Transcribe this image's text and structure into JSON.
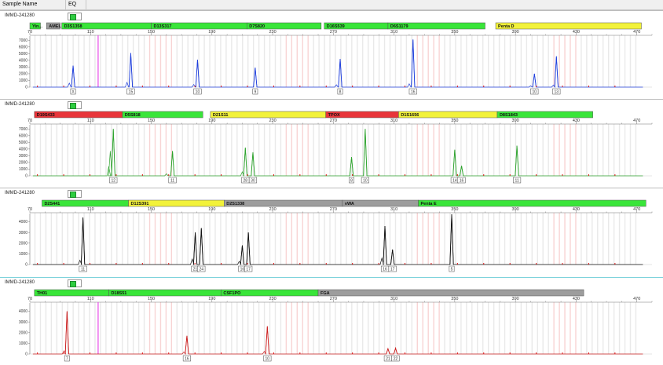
{
  "header": {
    "sample_name_label": "Sample Name",
    "eq_label": "EQ"
  },
  "colors": {
    "green": "#39e539",
    "yellow": "#f2f23a",
    "red": "#e8353a",
    "gray": "#9d9d9d",
    "blue": "#1f3fdc",
    "dkgreen": "#2ea32e",
    "black": "#111111",
    "red_trace": "#cc2020",
    "pink_line": "#e63ae6"
  },
  "panels": [
    {
      "sample": "IMMD-241280",
      "color": "#1f3fdc",
      "x_range": [
        70,
        480
      ],
      "x_ticks": [
        70,
        110,
        150,
        190,
        230,
        270,
        310,
        350,
        390,
        430,
        470
      ],
      "y_max": 7500,
      "y_ticks": [
        0,
        1000,
        2000,
        3000,
        4000,
        5000,
        6000,
        7000
      ],
      "loci": [
        {
          "name": "Yin...",
          "start": 70,
          "end": 77,
          "color": "green"
        },
        {
          "name": "AMEL",
          "start": 81,
          "end": 90,
          "color": "gray"
        },
        {
          "name": "D3S1358",
          "start": 91,
          "end": 150,
          "color": "green"
        },
        {
          "name": "D13S317",
          "start": 150,
          "end": 213,
          "color": "green"
        },
        {
          "name": "D7S820",
          "start": 213,
          "end": 262,
          "color": "green"
        },
        {
          "name": "D16S539",
          "start": 264,
          "end": 306,
          "color": "green"
        },
        {
          "name": "D6S1179",
          "start": 306,
          "end": 370,
          "color": "green"
        },
        {
          "name": "Penta D",
          "start": 377,
          "end": 473,
          "color": "yellow"
        }
      ],
      "pink_line": 115,
      "peaks": [
        {
          "x": 98.5,
          "h": 3200
        },
        {
          "x": 136.5,
          "h": 5100
        },
        {
          "x": 180.5,
          "h": 4100
        },
        {
          "x": 218.5,
          "h": 2900
        },
        {
          "x": 274.5,
          "h": 4200
        },
        {
          "x": 322.5,
          "h": 7100
        },
        {
          "x": 402.5,
          "h": 2000
        },
        {
          "x": 417,
          "h": 4600
        }
      ],
      "small_peaks": [
        {
          "x": 96,
          "h": 600
        },
        {
          "x": 134,
          "h": 700
        },
        {
          "x": 178,
          "h": 400
        },
        {
          "x": 272,
          "h": 350
        },
        {
          "x": 320,
          "h": 500
        },
        {
          "x": 400,
          "h": 200
        },
        {
          "x": 415,
          "h": 300
        }
      ],
      "labels": [
        {
          "x": 98.5,
          "text": "X"
        },
        {
          "x": 136.5,
          "text": "15"
        },
        {
          "x": 180.5,
          "text": "10"
        },
        {
          "x": 218.5,
          "text": "9"
        },
        {
          "x": 274.5,
          "text": "8"
        },
        {
          "x": 322.5,
          "text": "16"
        },
        {
          "x": 402.5,
          "text": "10"
        },
        {
          "x": 417,
          "text": "13"
        }
      ]
    },
    {
      "sample": "IMMD-241280",
      "color": "#2ea32e",
      "x_range": [
        70,
        480
      ],
      "x_ticks": [
        70,
        110,
        150,
        190,
        230,
        270,
        310,
        350,
        390,
        430,
        470
      ],
      "y_max": 7500,
      "y_ticks": [
        0,
        1000,
        2000,
        3000,
        4000,
        5000,
        6000,
        7000
      ],
      "loci": [
        {
          "name": "D19S433",
          "start": 73,
          "end": 131,
          "color": "red"
        },
        {
          "name": "D5S818",
          "start": 131,
          "end": 184,
          "color": "green"
        },
        {
          "name": "D21S11",
          "start": 189,
          "end": 265,
          "color": "yellow"
        },
        {
          "name": "TPOX",
          "start": 265,
          "end": 313,
          "color": "red"
        },
        {
          "name": "D1S1656",
          "start": 313,
          "end": 378,
          "color": "yellow"
        },
        {
          "name": "D8S1843",
          "start": 378,
          "end": 441,
          "color": "green"
        }
      ],
      "pink_line": null,
      "peaks": [
        {
          "x": 125,
          "h": 7000
        },
        {
          "x": 164,
          "h": 3700
        },
        {
          "x": 212,
          "h": 4200
        },
        {
          "x": 217,
          "h": 3500
        },
        {
          "x": 282,
          "h": 2800
        },
        {
          "x": 291,
          "h": 7000
        },
        {
          "x": 350,
          "h": 3900
        },
        {
          "x": 354.5,
          "h": 1500
        },
        {
          "x": 391,
          "h": 4500
        }
      ],
      "small_peaks": [
        {
          "x": 123,
          "h": 3700
        },
        {
          "x": 122,
          "h": 1400
        },
        {
          "x": 160,
          "h": 300
        },
        {
          "x": 210,
          "h": 600
        }
      ],
      "labels": [
        {
          "x": 125,
          "text": "12"
        },
        {
          "x": 164,
          "text": "11"
        },
        {
          "x": 212,
          "text": "28"
        },
        {
          "x": 217,
          "text": "30"
        },
        {
          "x": 282,
          "text": "8"
        },
        {
          "x": 291,
          "text": "10"
        },
        {
          "x": 350,
          "text": "14"
        },
        {
          "x": 354.5,
          "text": "16"
        },
        {
          "x": 391,
          "text": "11"
        }
      ]
    },
    {
      "sample": "IMMD-241280",
      "color": "#111111",
      "x_range": [
        70,
        480
      ],
      "x_ticks": [
        70,
        110,
        150,
        190,
        230,
        270,
        310,
        350,
        390,
        430,
        470
      ],
      "y_max": 4700,
      "y_ticks": [
        0,
        1000,
        2000,
        3000,
        4000
      ],
      "loci": [
        {
          "name": "D2S441",
          "start": 78,
          "end": 135,
          "color": "green"
        },
        {
          "name": "D12S391",
          "start": 135,
          "end": 198,
          "color": "yellow"
        },
        {
          "name": "D2S1338",
          "start": 198,
          "end": 276,
          "color": "gray"
        },
        {
          "name": "vWA",
          "start": 276,
          "end": 326,
          "color": "gray"
        },
        {
          "name": "Penta E",
          "start": 326,
          "end": 476,
          "color": "green"
        }
      ],
      "pink_line": null,
      "peaks": [
        {
          "x": 105,
          "h": 4400
        },
        {
          "x": 179,
          "h": 3000
        },
        {
          "x": 183,
          "h": 3400
        },
        {
          "x": 210,
          "h": 1800
        },
        {
          "x": 214,
          "h": 3000
        },
        {
          "x": 304,
          "h": 3600
        },
        {
          "x": 309,
          "h": 1400
        },
        {
          "x": 348,
          "h": 4700
        }
      ],
      "small_peaks": [
        {
          "x": 177,
          "h": 500
        },
        {
          "x": 208,
          "h": 300
        },
        {
          "x": 302,
          "h": 600
        },
        {
          "x": 103,
          "h": 400
        }
      ],
      "labels": [
        {
          "x": 105,
          "text": "11"
        },
        {
          "x": 179,
          "text": "21"
        },
        {
          "x": 183,
          "text": "24"
        },
        {
          "x": 210,
          "text": "16"
        },
        {
          "x": 214,
          "text": "17"
        },
        {
          "x": 304,
          "text": "16"
        },
        {
          "x": 309,
          "text": "17"
        },
        {
          "x": 348,
          "text": "5"
        }
      ]
    },
    {
      "sample": "IMMD-241280",
      "color": "#cc2020",
      "x_range": [
        70,
        480
      ],
      "x_ticks": [
        70,
        110,
        150,
        190,
        230,
        270,
        310,
        350,
        390,
        430,
        470
      ],
      "y_max": 4700,
      "y_ticks": [
        0,
        1000,
        2000,
        3000,
        4000
      ],
      "loci": [
        {
          "name": "TH01",
          "start": 73,
          "end": 122,
          "color": "green"
        },
        {
          "name": "D18S51",
          "start": 122,
          "end": 196,
          "color": "green"
        },
        {
          "name": "CSF1PO",
          "start": 196,
          "end": 260,
          "color": "green"
        },
        {
          "name": "FGA",
          "start": 260,
          "end": 435,
          "color": "gray"
        }
      ],
      "pink_line": 115,
      "peaks": [
        {
          "x": 94.5,
          "h": 4000
        },
        {
          "x": 173.5,
          "h": 1700
        },
        {
          "x": 226.5,
          "h": 2600
        },
        {
          "x": 306,
          "h": 500
        },
        {
          "x": 311,
          "h": 550
        }
      ],
      "small_peaks": [
        {
          "x": 92.5,
          "h": 300
        },
        {
          "x": 171.5,
          "h": 200
        },
        {
          "x": 224.5,
          "h": 250
        }
      ],
      "labels": [
        {
          "x": 94.5,
          "text": "7"
        },
        {
          "x": 173.5,
          "text": "16"
        },
        {
          "x": 226.5,
          "text": "10"
        },
        {
          "x": 306,
          "text": "21"
        },
        {
          "x": 311,
          "text": "22"
        }
      ]
    }
  ]
}
